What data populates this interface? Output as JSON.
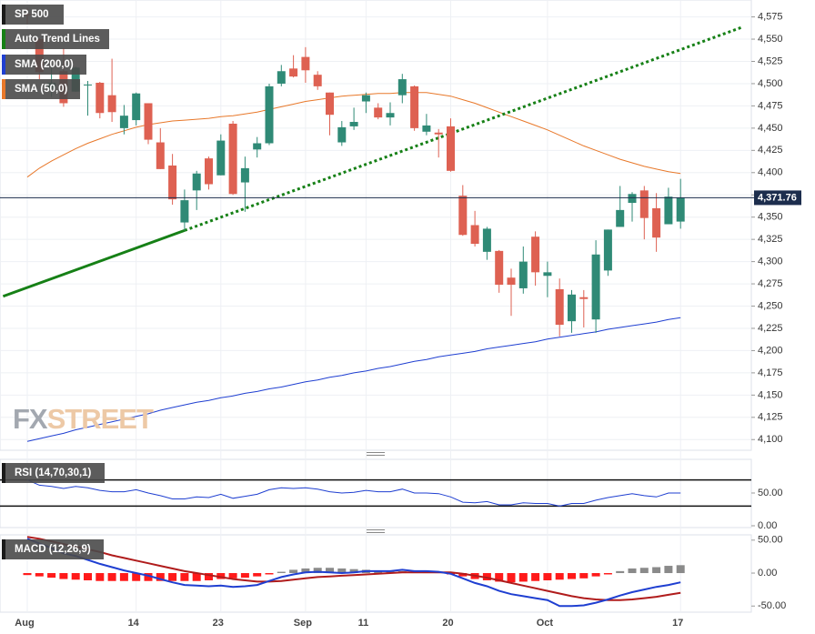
{
  "chart_data": [
    {
      "type": "candlestick",
      "name": "SP 500",
      "open": [
        4578,
        4550,
        4494,
        4514,
        4491,
        4498,
        4501,
        4487,
        4450,
        4459,
        4478,
        4434,
        4408,
        4344,
        4380,
        4416,
        4397,
        4455,
        4389,
        4426,
        4433,
        4500,
        4517,
        4530,
        4510,
        4490,
        4434,
        4452,
        4480,
        4473,
        4462,
        4487,
        4497,
        4446,
        4445,
        4452,
        4374,
        4341,
        4311,
        4312,
        4282,
        4270,
        4328,
        4284,
        4269,
        4233,
        4260,
        4235,
        4290,
        4339,
        4366,
        4380,
        4360,
        4342,
        4345
      ],
      "high": [
        4585,
        4551,
        4519,
        4540,
        4519,
        4503,
        4502,
        4528,
        4476,
        4490,
        4478,
        4450,
        4421,
        4381,
        4402,
        4418,
        4443,
        4458,
        4418,
        4440,
        4500,
        4521,
        4532,
        4541,
        4514,
        4490,
        4458,
        4473,
        4490,
        4478,
        4479,
        4511,
        4498,
        4466,
        4449,
        4461,
        4386,
        4357,
        4339,
        4313,
        4292,
        4317,
        4334,
        4300,
        4281,
        4268,
        4268,
        4324,
        4336,
        4385,
        4378,
        4385,
        4377,
        4383,
        4393
      ],
      "low": [
        4567,
        4505,
        4485,
        4474,
        4491,
        4464,
        4461,
        4457,
        4443,
        4453,
        4432,
        4404,
        4364,
        4335,
        4358,
        4381,
        4397,
        4375,
        4356,
        4417,
        4431,
        4497,
        4507,
        4501,
        4493,
        4442,
        4430,
        4448,
        4467,
        4460,
        4453,
        4478,
        4447,
        4442,
        4417,
        4401,
        4329,
        4317,
        4302,
        4265,
        4239,
        4264,
        4273,
        4260,
        4216,
        4220,
        4226,
        4220,
        4284,
        4339,
        4345,
        4325,
        4311,
        4342,
        4337
      ],
      "close": [
        4577,
        4513,
        4501,
        4478,
        4518,
        4499,
        4467,
        4468,
        4464,
        4489,
        4437,
        4404,
        4370,
        4369,
        4399,
        4387,
        4436,
        4376,
        4405,
        4433,
        4497,
        4514,
        4508,
        4515,
        4497,
        4465,
        4451,
        4457,
        4487,
        4462,
        4467,
        4505,
        4450,
        4453,
        4443,
        4402,
        4330,
        4320,
        4337,
        4274,
        4274,
        4300,
        4288,
        4288,
        4229,
        4263,
        4258,
        4308,
        4336,
        4358,
        4376,
        4349,
        4327,
        4373,
        4372
      ],
      "up_color": "#2f8a76",
      "down_color": "#de6152",
      "ylim": [
        4088,
        4594
      ],
      "yticks": [
        {
          "value": 4100,
          "label": "4,100"
        },
        {
          "value": 4125,
          "label": "4,125"
        },
        {
          "value": 4150,
          "label": "4,150"
        },
        {
          "value": 4175,
          "label": "4,175"
        },
        {
          "value": 4200,
          "label": "4,200"
        },
        {
          "value": 4225,
          "label": "4,225"
        },
        {
          "value": 4250,
          "label": "4,250"
        },
        {
          "value": 4275,
          "label": "4,275"
        },
        {
          "value": 4300,
          "label": "4,300"
        },
        {
          "value": 4325,
          "label": "4,325"
        },
        {
          "value": 4350,
          "label": "4,350"
        },
        {
          "value": 4375,
          "label": "4,375"
        },
        {
          "value": 4400,
          "label": "4,400"
        },
        {
          "value": 4425,
          "label": "4,425"
        },
        {
          "value": 4450,
          "label": "4,450"
        },
        {
          "value": 4475,
          "label": "4,475"
        },
        {
          "value": 4500,
          "label": "4,500"
        },
        {
          "value": 4525,
          "label": "4,525"
        },
        {
          "value": 4550,
          "label": "4,550"
        },
        {
          "value": 4575,
          "label": "4,575"
        }
      ],
      "grid": true,
      "last_price": {
        "value": 4371.76,
        "label": "4,371.76",
        "color": "#1c2d4d"
      },
      "overlays": [
        {
          "name": "SMA (200,0)",
          "color": "#1f3fd1",
          "values": [
            4098,
            4101,
            4104,
            4107,
            4111,
            4114,
            4117,
            4120,
            4123,
            4126,
            4129,
            4133,
            4136,
            4139,
            4142,
            4144,
            4147,
            4149,
            4152,
            4154,
            4157,
            4159,
            4162,
            4165,
            4167,
            4170,
            4172,
            4175,
            4177,
            4180,
            4182,
            4185,
            4188,
            4190,
            4193,
            4195,
            4197,
            4199,
            4202,
            4204,
            4206,
            4208,
            4210,
            4213,
            4215,
            4217,
            4219,
            4221,
            4224,
            4226,
            4228,
            4230,
            4232,
            4235,
            4237
          ]
        },
        {
          "name": "SMA (50,0)",
          "color": "#e8782a",
          "values": [
            4395,
            4405,
            4413,
            4420,
            4427,
            4433,
            4438,
            4443,
            4447,
            4451,
            4454,
            4456,
            4458,
            4459,
            4460,
            4461,
            4463,
            4464,
            4466,
            4468,
            4471,
            4474,
            4477,
            4480,
            4482,
            4484,
            4486,
            4487,
            4488,
            4489,
            4489,
            4490,
            4490,
            4490,
            4488,
            4486,
            4482,
            4478,
            4473,
            4468,
            4463,
            4458,
            4453,
            4448,
            4442,
            4436,
            4430,
            4425,
            4420,
            4415,
            4411,
            4407,
            4404,
            4401,
            4399
          ]
        }
      ],
      "trend_line": {
        "name": "Auto Trend Lines",
        "color": "#168016",
        "solid": [
          {
            "index": -2,
            "value": 4261
          },
          {
            "index": 13,
            "value": 4335
          }
        ],
        "dotted": [
          {
            "index": 13,
            "value": 4335
          },
          {
            "index": 59,
            "value": 4563
          }
        ]
      },
      "watermark": [
        "FX",
        "STREET"
      ]
    },
    {
      "type": "line",
      "name": "RSI (14,70,30,1)",
      "color": "#1f3fd1",
      "values": [
        70,
        62,
        60,
        57,
        60,
        58,
        54,
        52,
        52,
        55,
        50,
        46,
        41,
        41,
        44,
        43,
        48,
        42,
        45,
        48,
        55,
        58,
        57,
        58,
        56,
        52,
        50,
        51,
        54,
        52,
        52,
        56,
        50,
        50,
        49,
        44,
        36,
        35,
        37,
        32,
        32,
        35,
        34,
        34,
        30,
        34,
        34,
        39,
        43,
        46,
        49,
        46,
        44,
        50,
        50
      ],
      "ylim": [
        0,
        100
      ],
      "yticks": [
        {
          "value": 50,
          "label": "50.00"
        },
        {
          "value": 0,
          "label": "0.00"
        }
      ],
      "levels": [
        70,
        30
      ],
      "level_color": "#111111"
    },
    {
      "type": "macd",
      "name": "MACD (12,26,9)",
      "categories": [
        "Aug",
        null,
        null,
        null,
        null,
        null,
        null,
        null,
        null,
        "14",
        null,
        null,
        null,
        null,
        null,
        null,
        "23",
        null,
        null,
        null,
        null,
        null,
        null,
        "Sep",
        null,
        null,
        null,
        null,
        "11",
        null,
        null,
        null,
        null,
        null,
        null,
        "20",
        null,
        null,
        null,
        null,
        null,
        null,
        null,
        "Oct",
        null,
        null,
        null,
        null,
        null,
        null,
        null,
        null,
        null,
        null,
        "17"
      ],
      "macd": {
        "color": "#1f3fd1",
        "values": [
          52,
          45,
          38,
          30,
          26,
          20,
          14,
          9,
          4,
          0,
          -4,
          -9,
          -14,
          -18,
          -19,
          -20,
          -19,
          -21,
          -20,
          -18,
          -12,
          -6,
          -2,
          1,
          2,
          1,
          0,
          1,
          3,
          3,
          3,
          5,
          3,
          3,
          2,
          -1,
          -8,
          -15,
          -20,
          -27,
          -32,
          -35,
          -38,
          -41,
          -50,
          -50,
          -49,
          -45,
          -40,
          -34,
          -29,
          -25,
          -21,
          -18,
          -14
        ]
      },
      "signal": {
        "color": "#b01c1c",
        "values": [
          55,
          52,
          48,
          44,
          40,
          36,
          32,
          27,
          23,
          19,
          15,
          11,
          7,
          3,
          0,
          -3,
          -6,
          -9,
          -11,
          -13,
          -13,
          -12,
          -10,
          -8,
          -6,
          -5,
          -4,
          -3,
          -2,
          -1,
          0,
          1,
          1,
          1,
          1,
          1,
          -1,
          -4,
          -7,
          -11,
          -15,
          -19,
          -23,
          -27,
          -31,
          -35,
          -38,
          -40,
          -41,
          -41,
          -40,
          -38,
          -36,
          -33,
          -30
        ]
      },
      "histogram": {
        "up_color": "#8a8a8a",
        "down_color": "#ff1a1a",
        "values": [
          -3,
          -5,
          -7,
          -9,
          -10,
          -11,
          -12,
          -12,
          -12,
          -12,
          -12,
          -12,
          -12,
          -12,
          -12,
          -11,
          -9,
          -8,
          -7,
          -5,
          -2,
          2,
          5,
          7,
          8,
          8,
          7,
          6,
          5,
          4,
          3,
          3,
          2,
          2,
          1,
          -2,
          -5,
          -9,
          -11,
          -13,
          -14,
          -13,
          -12,
          -11,
          -10,
          -9,
          -8,
          -5,
          -2,
          3,
          7,
          8,
          9,
          11,
          12
        ]
      },
      "ylim": [
        -80,
        58
      ],
      "yticks": [
        {
          "value": 50,
          "label": "50.00"
        },
        {
          "value": 0,
          "label": "0.00"
        },
        {
          "value": -50,
          "label": "-50.00"
        }
      ]
    }
  ]
}
